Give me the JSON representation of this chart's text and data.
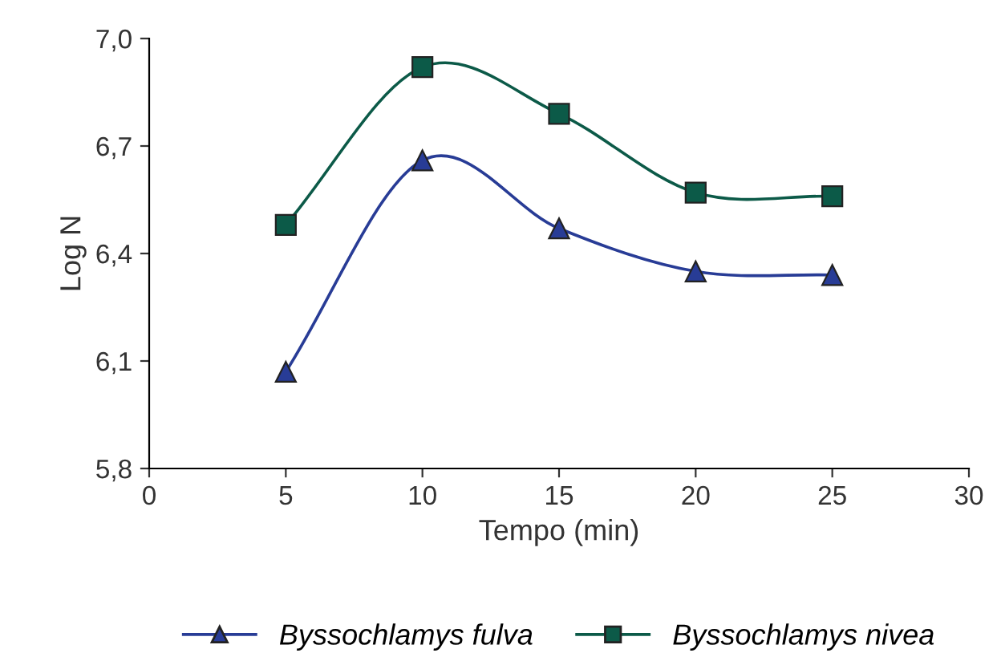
{
  "chart_data": {
    "type": "line",
    "xlabel": "Tempo (min)",
    "ylabel": "Log N",
    "x": [
      5,
      10,
      15,
      20,
      25
    ],
    "series": [
      {
        "name": "Byssochlamys fulva",
        "color": "#283c96",
        "marker": "triangle",
        "values": [
          6.07,
          6.66,
          6.47,
          6.35,
          6.34
        ]
      },
      {
        "name": "Byssochlamys nivea",
        "color": "#0c5a48",
        "marker": "square",
        "values": [
          6.48,
          6.92,
          6.79,
          6.57,
          6.56
        ]
      }
    ],
    "xlim": [
      0,
      30
    ],
    "xticks": [
      0,
      5,
      10,
      15,
      20,
      25,
      30
    ],
    "ylim": [
      5.8,
      7.0
    ],
    "yticks": [
      {
        "value": 5.8,
        "label": "5,8"
      },
      {
        "value": 6.1,
        "label": "6,1"
      },
      {
        "value": 6.4,
        "label": "6,4"
      },
      {
        "value": 6.7,
        "label": "6,7"
      },
      {
        "value": 7.0,
        "label": "7,0"
      }
    ],
    "grid": false,
    "legend": "bottom",
    "line_style": "solid"
  }
}
